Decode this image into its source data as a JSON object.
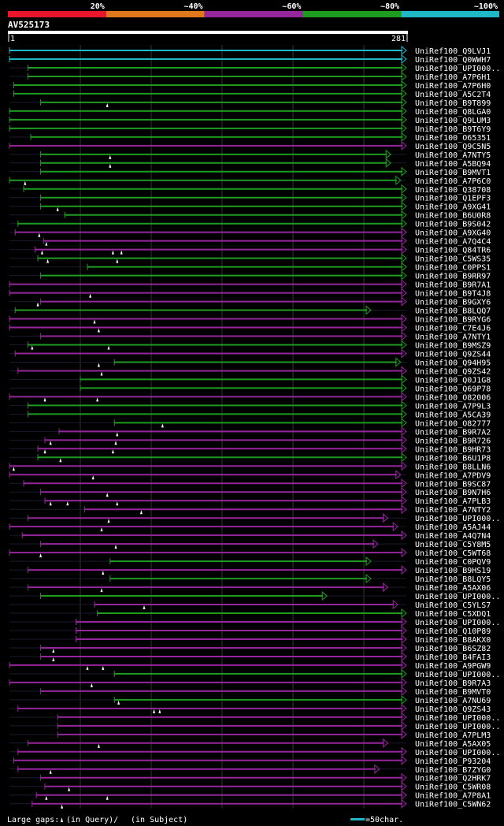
{
  "chart_data": {
    "type": "bar",
    "query_id": "AV525173",
    "query_start": "1",
    "query_end": "281",
    "xlim": [
      1,
      281
    ],
    "identity_legend": [
      {
        "label": "20%",
        "color": "#e8152d"
      },
      {
        "label": "~40%",
        "color": "#e0781e"
      },
      {
        "label": "~60%",
        "color": "#96269b"
      },
      {
        "label": "~80%",
        "color": "#1d9c1f"
      },
      {
        "label": "~100%",
        "color": "#1fb8c6"
      }
    ],
    "footer": {
      "gaps_label": "Large gaps:",
      "query_gap_label": "(in Query)/",
      "subject_gap_label": "(in Subject)",
      "scale_label": "=50char."
    },
    "hits": [
      {
        "name": "UniRef100_Q9LVJ1",
        "start": 1,
        "end": 281,
        "identity": "~100%",
        "arrow": true,
        "query_gaps": []
      },
      {
        "name": "UniRef100_Q0WWH7",
        "start": 1,
        "end": 281,
        "identity": "~100%",
        "arrow": true,
        "query_gaps": []
      },
      {
        "name": "UniRef100_UPI000..",
        "start": 14,
        "end": 281,
        "identity": "~80%",
        "arrow": true,
        "query_gaps": []
      },
      {
        "name": "UniRef100_A7P6H1",
        "start": 14,
        "end": 281,
        "identity": "~80%",
        "arrow": true,
        "query_gaps": []
      },
      {
        "name": "UniRef100_A7P6H0",
        "start": 4,
        "end": 281,
        "identity": "~80%",
        "arrow": true,
        "query_gaps": []
      },
      {
        "name": "UniRef100_A5C2T4",
        "start": 4,
        "end": 281,
        "identity": "~80%",
        "arrow": true,
        "query_gaps": []
      },
      {
        "name": "UniRef100_B9T899",
        "start": 23,
        "end": 281,
        "identity": "~80%",
        "arrow": true,
        "query_gaps": [
          70
        ]
      },
      {
        "name": "UniRef100_Q8LGA0",
        "start": 1,
        "end": 281,
        "identity": "~80%",
        "arrow": true,
        "query_gaps": []
      },
      {
        "name": "UniRef100_Q9LUM3",
        "start": 1,
        "end": 281,
        "identity": "~80%",
        "arrow": true,
        "query_gaps": []
      },
      {
        "name": "UniRef100_B9T6Y9",
        "start": 1,
        "end": 281,
        "identity": "~80%",
        "arrow": true,
        "query_gaps": []
      },
      {
        "name": "UniRef100_O65351",
        "start": 16,
        "end": 281,
        "identity": "~80%",
        "arrow": true,
        "query_gaps": []
      },
      {
        "name": "UniRef100_Q9C5N5",
        "start": 1,
        "end": 281,
        "identity": "~60%",
        "arrow": true,
        "query_gaps": []
      },
      {
        "name": "UniRef100_A7NTY5",
        "start": 23,
        "end": 270,
        "identity": "~80%",
        "arrow": true,
        "query_gaps": [
          72
        ]
      },
      {
        "name": "UniRef100_A5BQ94",
        "start": 23,
        "end": 270,
        "identity": "~80%",
        "arrow": true,
        "query_gaps": [
          72
        ]
      },
      {
        "name": "UniRef100_B9MVT1",
        "start": 23,
        "end": 281,
        "identity": "~80%",
        "arrow": true,
        "query_gaps": []
      },
      {
        "name": "UniRef100_A7P6C0",
        "start": 1,
        "end": 277,
        "identity": "~80%",
        "arrow": true,
        "query_gaps": [
          12
        ]
      },
      {
        "name": "UniRef100_Q38708",
        "start": 11,
        "end": 281,
        "identity": "~80%",
        "arrow": true,
        "query_gaps": []
      },
      {
        "name": "UniRef100_Q1EPF3",
        "start": 23,
        "end": 281,
        "identity": "~80%",
        "arrow": true,
        "query_gaps": []
      },
      {
        "name": "UniRef100_A9XG41",
        "start": 23,
        "end": 281,
        "identity": "~80%",
        "arrow": true,
        "query_gaps": [
          35
        ]
      },
      {
        "name": "UniRef100_B6U0R8",
        "start": 40,
        "end": 281,
        "identity": "~80%",
        "arrow": true,
        "query_gaps": []
      },
      {
        "name": "UniRef100_B9S042",
        "start": 7,
        "end": 281,
        "identity": "~80%",
        "arrow": true,
        "query_gaps": []
      },
      {
        "name": "UniRef100_A9XG40",
        "start": 5,
        "end": 281,
        "identity": "~60%",
        "arrow": true,
        "query_gaps": [
          22
        ]
      },
      {
        "name": "UniRef100_A7Q4C4",
        "start": 25,
        "end": 281,
        "identity": "~60%",
        "arrow": true,
        "query_gaps": [
          27
        ]
      },
      {
        "name": "UniRef100_Q84TR6",
        "start": 19,
        "end": 281,
        "identity": "~60%",
        "arrow": true,
        "query_gaps": [
          24,
          74,
          80
        ]
      },
      {
        "name": "UniRef100_C5WS35",
        "start": 21,
        "end": 281,
        "identity": "~80%",
        "arrow": true,
        "query_gaps": [
          28,
          77
        ]
      },
      {
        "name": "UniRef100_C0PPS1",
        "start": 56,
        "end": 281,
        "identity": "~80%",
        "arrow": true,
        "query_gaps": []
      },
      {
        "name": "UniRef100_B9RR97",
        "start": 23,
        "end": 281,
        "identity": "~80%",
        "arrow": true,
        "query_gaps": []
      },
      {
        "name": "UniRef100_B9R7A1",
        "start": 1,
        "end": 281,
        "identity": "~60%",
        "arrow": true,
        "query_gaps": []
      },
      {
        "name": "UniRef100_B9T4J8",
        "start": 1,
        "end": 281,
        "identity": "~60%",
        "arrow": true,
        "query_gaps": [
          58
        ]
      },
      {
        "name": "UniRef100_B9GXY6",
        "start": 23,
        "end": 281,
        "identity": "~60%",
        "arrow": true,
        "query_gaps": [
          21
        ]
      },
      {
        "name": "UniRef100_B8LQQ7",
        "start": 5,
        "end": 256,
        "identity": "~80%",
        "arrow": true,
        "query_gaps": []
      },
      {
        "name": "UniRef100_B9RYG6",
        "start": 1,
        "end": 281,
        "identity": "~60%",
        "arrow": true,
        "query_gaps": [
          61
        ]
      },
      {
        "name": "UniRef100_C7E4J6",
        "start": 1,
        "end": 281,
        "identity": "~60%",
        "arrow": true,
        "query_gaps": [
          64
        ]
      },
      {
        "name": "UniRef100_A7NTY1",
        "start": 23,
        "end": 281,
        "identity": "~60%",
        "arrow": true,
        "query_gaps": []
      },
      {
        "name": "UniRef100_B9MSZ9",
        "start": 14,
        "end": 281,
        "identity": "~80%",
        "arrow": true,
        "query_gaps": [
          71,
          17
        ]
      },
      {
        "name": "UniRef100_Q9ZS44",
        "start": 5,
        "end": 281,
        "identity": "~60%",
        "arrow": true,
        "query_gaps": []
      },
      {
        "name": "UniRef100_Q94H95",
        "start": 75,
        "end": 277,
        "identity": "~80%",
        "arrow": true,
        "query_gaps": [
          64
        ]
      },
      {
        "name": "UniRef100_Q9ZS42",
        "start": 7,
        "end": 281,
        "identity": "~60%",
        "arrow": true,
        "query_gaps": [
          66
        ]
      },
      {
        "name": "UniRef100_Q0J1G8",
        "start": 51,
        "end": 281,
        "identity": "~80%",
        "arrow": true,
        "query_gaps": []
      },
      {
        "name": "UniRef100_Q69P78",
        "start": 51,
        "end": 281,
        "identity": "~80%",
        "arrow": true,
        "query_gaps": []
      },
      {
        "name": "UniRef100_O82006",
        "start": 1,
        "end": 281,
        "identity": "~60%",
        "arrow": true,
        "query_gaps": [
          26,
          63
        ]
      },
      {
        "name": "UniRef100_A7P9L3",
        "start": 14,
        "end": 281,
        "identity": "~80%",
        "arrow": true,
        "query_gaps": []
      },
      {
        "name": "UniRef100_A5CA39",
        "start": 14,
        "end": 281,
        "identity": "~80%",
        "arrow": true,
        "query_gaps": []
      },
      {
        "name": "UniRef100_O82777",
        "start": 75,
        "end": 281,
        "identity": "~80%",
        "arrow": true,
        "query_gaps": [
          109
        ]
      },
      {
        "name": "UniRef100_B9R7A2",
        "start": 36,
        "end": 281,
        "identity": "~60%",
        "arrow": true,
        "query_gaps": [
          77
        ]
      },
      {
        "name": "UniRef100_B9R726",
        "start": 26,
        "end": 281,
        "identity": "~60%",
        "arrow": true,
        "query_gaps": [
          30,
          76
        ]
      },
      {
        "name": "UniRef100_B9HR73",
        "start": 21,
        "end": 281,
        "identity": "~60%",
        "arrow": true,
        "query_gaps": [
          26,
          74
        ]
      },
      {
        "name": "UniRef100_B6U1P8",
        "start": 21,
        "end": 281,
        "identity": "~80%",
        "arrow": true,
        "query_gaps": [
          37
        ]
      },
      {
        "name": "UniRef100_B8LLN6",
        "start": 1,
        "end": 281,
        "identity": "~60%",
        "arrow": true,
        "query_gaps": [
          4
        ]
      },
      {
        "name": "UniRef100_A7PDV9",
        "start": 1,
        "end": 277,
        "identity": "~60%",
        "arrow": true,
        "query_gaps": [
          60
        ]
      },
      {
        "name": "UniRef100_B9SC87",
        "start": 11,
        "end": 281,
        "identity": "~60%",
        "arrow": true,
        "query_gaps": []
      },
      {
        "name": "UniRef100_B9N7H6",
        "start": 23,
        "end": 281,
        "identity": "~60%",
        "arrow": true,
        "query_gaps": [
          70
        ]
      },
      {
        "name": "UniRef100_A7PLB3",
        "start": 26,
        "end": 281,
        "identity": "~60%",
        "arrow": true,
        "query_gaps": [
          30,
          42,
          77
        ]
      },
      {
        "name": "UniRef100_A7NTY2",
        "start": 54,
        "end": 281,
        "identity": "~60%",
        "arrow": true,
        "query_gaps": [
          94
        ]
      },
      {
        "name": "UniRef100_UPI000..",
        "start": 14,
        "end": 268,
        "identity": "~60%",
        "arrow": true,
        "query_gaps": [
          71
        ]
      },
      {
        "name": "UniRef100_A5AJ44",
        "start": 1,
        "end": 275,
        "identity": "~60%",
        "arrow": true,
        "query_gaps": [
          66
        ]
      },
      {
        "name": "UniRef100_A4Q7N4",
        "start": 10,
        "end": 281,
        "identity": "~60%",
        "arrow": true,
        "query_gaps": []
      },
      {
        "name": "UniRef100_C5Y8M5",
        "start": 23,
        "end": 261,
        "identity": "~60%",
        "arrow": true,
        "query_gaps": [
          76
        ]
      },
      {
        "name": "UniRef100_C5WT68",
        "start": 1,
        "end": 281,
        "identity": "~60%",
        "arrow": true,
        "query_gaps": [
          23
        ]
      },
      {
        "name": "UniRef100_C0PQV9",
        "start": 72,
        "end": 256,
        "identity": "~80%",
        "arrow": true,
        "query_gaps": []
      },
      {
        "name": "UniRef100_B9HS19",
        "start": 14,
        "end": 281,
        "identity": "~60%",
        "arrow": true,
        "query_gaps": [
          67
        ]
      },
      {
        "name": "UniRef100_B8LQY5",
        "start": 72,
        "end": 256,
        "identity": "~80%",
        "arrow": true,
        "query_gaps": []
      },
      {
        "name": "UniRef100_A5AX06",
        "start": 14,
        "end": 268,
        "identity": "~60%",
        "arrow": true,
        "query_gaps": [
          66
        ]
      },
      {
        "name": "UniRef100_UPI000..",
        "start": 23,
        "end": 225,
        "identity": "~80%",
        "arrow": true,
        "query_gaps": []
      },
      {
        "name": "UniRef100_C5YLS7",
        "start": 61,
        "end": 275,
        "identity": "~60%",
        "arrow": true,
        "query_gaps": [
          96
        ]
      },
      {
        "name": "UniRef100_C5XDQ1",
        "start": 63,
        "end": 281,
        "identity": "~80%",
        "arrow": true,
        "query_gaps": []
      },
      {
        "name": "UniRef100_UPI000..",
        "start": 48,
        "end": 281,
        "identity": "~60%",
        "arrow": true,
        "query_gaps": []
      },
      {
        "name": "UniRef100_Q10P89",
        "start": 48,
        "end": 281,
        "identity": "~60%",
        "arrow": true,
        "query_gaps": []
      },
      {
        "name": "UniRef100_B8AKX0",
        "start": 48,
        "end": 281,
        "identity": "~60%",
        "arrow": true,
        "query_gaps": []
      },
      {
        "name": "UniRef100_B6SZ82",
        "start": 23,
        "end": 281,
        "identity": "~60%",
        "arrow": true,
        "query_gaps": [
          32
        ]
      },
      {
        "name": "UniRef100_B4FAI3",
        "start": 23,
        "end": 281,
        "identity": "~60%",
        "arrow": true,
        "query_gaps": [
          32
        ]
      },
      {
        "name": "UniRef100_A9PGW9",
        "start": 1,
        "end": 281,
        "identity": "~60%",
        "arrow": true,
        "query_gaps": [
          56,
          67
        ]
      },
      {
        "name": "UniRef100_UPI000..",
        "start": 75,
        "end": 281,
        "identity": "~80%",
        "arrow": true,
        "query_gaps": []
      },
      {
        "name": "UniRef100_B9R7A3",
        "start": 1,
        "end": 281,
        "identity": "~60%",
        "arrow": true,
        "query_gaps": [
          59
        ]
      },
      {
        "name": "UniRef100_B9MVT0",
        "start": 23,
        "end": 281,
        "identity": "~60%",
        "arrow": true,
        "query_gaps": []
      },
      {
        "name": "UniRef100_A7NU69",
        "start": 75,
        "end": 281,
        "identity": "~80%",
        "arrow": true,
        "query_gaps": [
          78
        ]
      },
      {
        "name": "UniRef100_Q9ZS43",
        "start": 7,
        "end": 281,
        "identity": "~60%",
        "arrow": true,
        "query_gaps": [
          103,
          107
        ]
      },
      {
        "name": "UniRef100_UPI000..",
        "start": 35,
        "end": 281,
        "identity": "~60%",
        "arrow": true,
        "query_gaps": []
      },
      {
        "name": "UniRef100_UPI000..",
        "start": 35,
        "end": 281,
        "identity": "~60%",
        "arrow": true,
        "query_gaps": []
      },
      {
        "name": "UniRef100_A7PLM3",
        "start": 35,
        "end": 281,
        "identity": "~60%",
        "arrow": true,
        "query_gaps": []
      },
      {
        "name": "UniRef100_A5AX05",
        "start": 14,
        "end": 268,
        "identity": "~60%",
        "arrow": true,
        "query_gaps": [
          64
        ]
      },
      {
        "name": "UniRef100_UPI000..",
        "start": 7,
        "end": 281,
        "identity": "~60%",
        "arrow": true,
        "query_gaps": []
      },
      {
        "name": "UniRef100_P93204",
        "start": 4,
        "end": 281,
        "identity": "~60%",
        "arrow": true,
        "query_gaps": []
      },
      {
        "name": "UniRef100_B7ZYG0",
        "start": 7,
        "end": 262,
        "identity": "~60%",
        "arrow": true,
        "query_gaps": [
          30
        ]
      },
      {
        "name": "UniRef100_Q2HRK7",
        "start": 23,
        "end": 281,
        "identity": "~60%",
        "arrow": true,
        "query_gaps": []
      },
      {
        "name": "UniRef100_C5WR08",
        "start": 26,
        "end": 281,
        "identity": "~60%",
        "arrow": true,
        "query_gaps": [
          43
        ]
      },
      {
        "name": "UniRef100_A7P8A1",
        "start": 20,
        "end": 281,
        "identity": "~60%",
        "arrow": true,
        "query_gaps": [
          27,
          70
        ]
      },
      {
        "name": "UniRef100_C5WN62",
        "start": 17,
        "end": 281,
        "identity": "~60%",
        "arrow": true,
        "query_gaps": [
          38
        ]
      }
    ]
  }
}
